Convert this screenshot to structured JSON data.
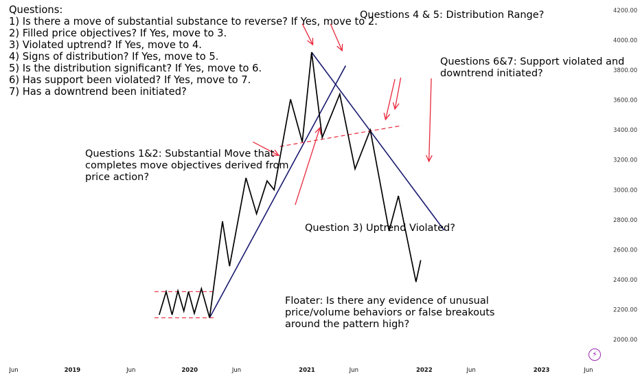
{
  "chart_data": {
    "type": "line",
    "title": "",
    "xlabel": "",
    "ylabel": "",
    "ylim": [
      2000,
      4200
    ],
    "y_ticks": [
      {
        "value": 4200,
        "label": "4200.00"
      },
      {
        "value": 4000,
        "label": "4000.00"
      },
      {
        "value": 3800,
        "label": "3800.00"
      },
      {
        "value": 3600,
        "label": "3600.00"
      },
      {
        "value": 3400,
        "label": "3400.00"
      },
      {
        "value": 3200,
        "label": "3200.00"
      },
      {
        "value": 3000,
        "label": "3000.00"
      },
      {
        "value": 2800,
        "label": "2800.00"
      },
      {
        "value": 2600,
        "label": "2600.00"
      },
      {
        "value": 2400,
        "label": "2400.00"
      },
      {
        "value": 2200,
        "label": "2200.00"
      },
      {
        "value": 2000,
        "label": "2000.00"
      }
    ],
    "xlim": [
      2018.5,
      2023.5
    ],
    "x_ticks": [
      {
        "value": 2018.5,
        "label": "Jun",
        "bold": false
      },
      {
        "value": 2019.0,
        "label": "2019",
        "bold": true
      },
      {
        "value": 2019.5,
        "label": "Jun",
        "bold": false
      },
      {
        "value": 2020.0,
        "label": "2020",
        "bold": true
      },
      {
        "value": 2020.4,
        "label": "Jun",
        "bold": false
      },
      {
        "value": 2021.0,
        "label": "2021",
        "bold": true
      },
      {
        "value": 2021.4,
        "label": "Jun",
        "bold": false
      },
      {
        "value": 2022.0,
        "label": "2022",
        "bold": true
      },
      {
        "value": 2022.4,
        "label": "Jun",
        "bold": false
      },
      {
        "value": 2023.0,
        "label": "2023",
        "bold": true
      },
      {
        "value": 2023.4,
        "label": "Jun",
        "bold": false
      }
    ],
    "series": [
      {
        "color": "#000000",
        "points": [
          [
            2019.74,
            2165
          ],
          [
            2019.8,
            2320
          ],
          [
            2019.85,
            2165
          ],
          [
            2019.9,
            2325
          ],
          [
            2019.95,
            2190
          ],
          [
            2019.99,
            2320
          ],
          [
            2020.04,
            2175
          ],
          [
            2020.1,
            2340
          ],
          [
            2020.17,
            2145
          ],
          [
            2020.28,
            2790
          ],
          [
            2020.34,
            2490
          ],
          [
            2020.48,
            3080
          ],
          [
            2020.57,
            2840
          ],
          [
            2020.66,
            3060
          ],
          [
            2020.72,
            3000
          ],
          [
            2020.86,
            3605
          ],
          [
            2020.96,
            3320
          ],
          [
            2021.04,
            3920
          ],
          [
            2021.13,
            3350
          ],
          [
            2021.28,
            3640
          ],
          [
            2021.41,
            3140
          ],
          [
            2021.54,
            3400
          ],
          [
            2021.7,
            2725
          ],
          [
            2021.78,
            2960
          ],
          [
            2021.93,
            2385
          ],
          [
            2021.97,
            2530
          ]
        ]
      }
    ],
    "overlays": [
      {
        "kind": "trendline",
        "style": "solid",
        "color": "#191970",
        "from": [
          2020.17,
          2145
        ],
        "to": [
          2021.33,
          3830
        ]
      },
      {
        "kind": "trendline",
        "style": "solid",
        "color": "#191970",
        "from": [
          2021.04,
          3920
        ],
        "to": [
          2022.17,
          2730
        ]
      },
      {
        "kind": "support",
        "style": "dashed",
        "color": "#e8283c",
        "from": [
          2020.77,
          3290
        ],
        "to": [
          2021.81,
          3430
        ]
      },
      {
        "kind": "range",
        "style": "dashed",
        "color": "#e8283c",
        "from": [
          2019.7,
          2320
        ],
        "to": [
          2020.21,
          2320
        ]
      },
      {
        "kind": "range",
        "style": "dashed",
        "color": "#e8283c",
        "from": [
          2019.7,
          2145
        ],
        "to": [
          2020.21,
          2145
        ]
      }
    ],
    "arrows": [
      {
        "color": "#e8283c",
        "from": [
          2020.54,
          3320
        ],
        "to": [
          2020.76,
          3230
        ]
      },
      {
        "color": "#e8283c",
        "from": [
          2020.9,
          2900
        ],
        "to": [
          2021.11,
          3415
        ]
      },
      {
        "color": "#e8283c",
        "from": [
          2020.96,
          4110
        ],
        "to": [
          2021.05,
          3970
        ]
      },
      {
        "color": "#e8283c",
        "from": [
          2021.2,
          4110
        ],
        "to": [
          2021.3,
          3930
        ]
      },
      {
        "color": "#e8283c",
        "from": [
          2021.8,
          3750
        ],
        "to": [
          2021.75,
          3540
        ]
      },
      {
        "color": "#e8283c",
        "from": [
          2021.75,
          3740
        ],
        "to": [
          2021.67,
          3470
        ]
      },
      {
        "color": "#e8283c",
        "from": [
          2022.06,
          3745
        ],
        "to": [
          2022.04,
          3190
        ]
      }
    ]
  },
  "annotations": {
    "questions": {
      "heading": "Questions:",
      "items": [
        "1) Is there a move of substantial substance to reverse? If Yes, move to 2.",
        "2) Filled price objectives? If Yes, move to 3.",
        "3) Violated uptrend? If Yes, move to 4.",
        "4) Signs of distribution? If Yes, move to 5.",
        "5) Is the distribution significant? If Yes, move to 6.",
        "6) Has support been violated? If Yes, move to 7.",
        "7) Has a downtrend been initiated?"
      ]
    },
    "q45": "Questions 4 & 5: Distribution Range?",
    "q67": [
      "Questions 6&7: Support violated and",
      "downtrend initiated?"
    ],
    "q12": [
      "Questions 1&2: Substantial Move that",
      "completes move objectives derived from",
      "price action?"
    ],
    "q3": "Question 3) Uptrend Violated?",
    "floater": [
      "Floater: Is there any evidence of unusual",
      "price/volume behaviors or false breakouts",
      "around the pattern high?"
    ]
  },
  "icons": {
    "corner": "lightning-icon",
    "corner_glyph": "⚡",
    "corner_color": "#9c27b0"
  }
}
